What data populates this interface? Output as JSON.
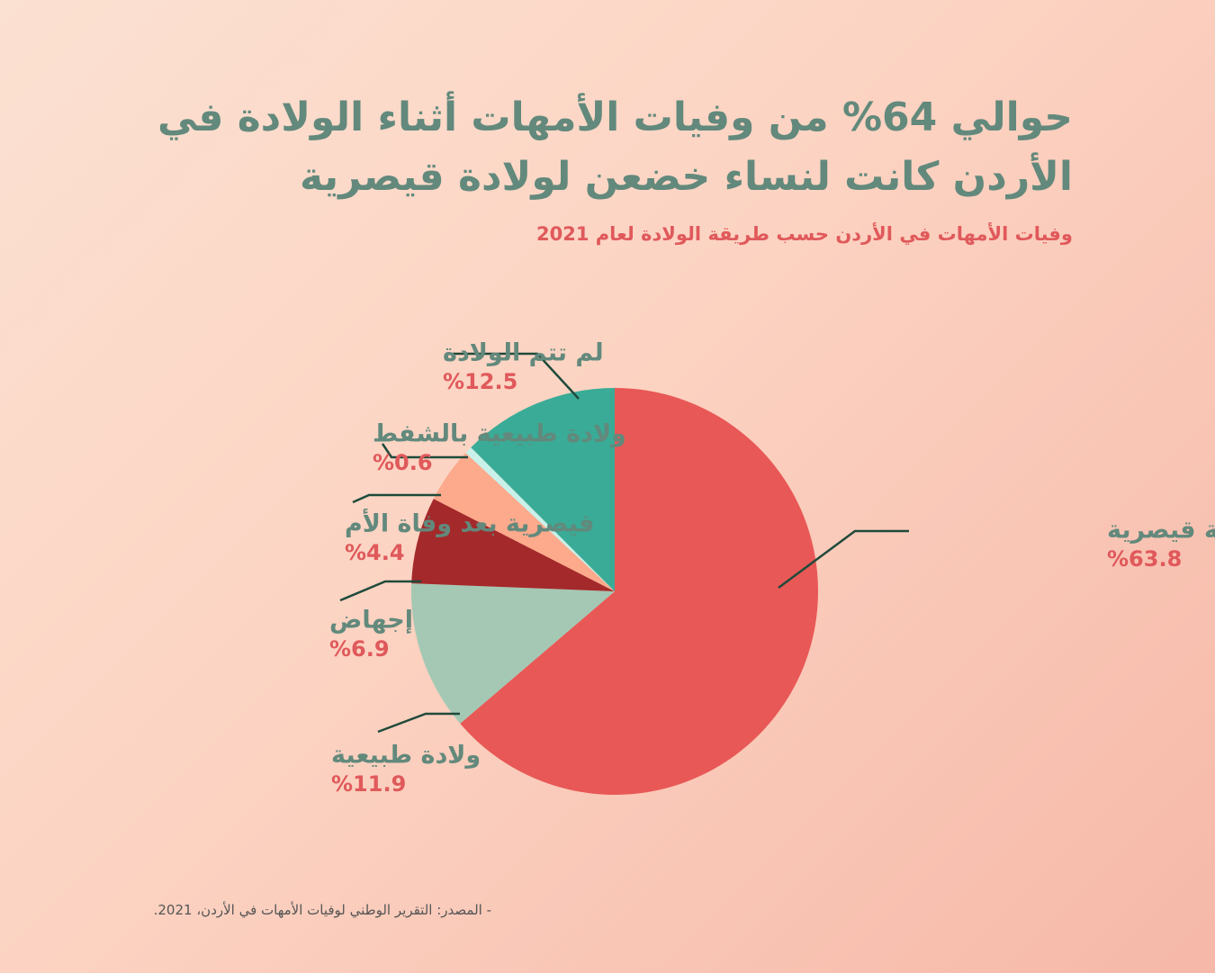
{
  "title": "حوالي 64% من وفيات الأمهات أثناء الولادة في الأردن كانت لنساء خضعن لولادة قيصرية",
  "subtitle": "وفيات الأمهات في الأردن حسب طريقة الولادة لعام 2021",
  "source": "- المصدر: التقرير الوطني لوفيات الأمهات في الأردن، 2021.",
  "chart_data": {
    "type": "pie",
    "start_angle_deg": 0,
    "direction": "clockwise",
    "slices": [
      {
        "name": "عملية قيصرية",
        "value": 63.8,
        "label": "%63.8",
        "color": "#e85856"
      },
      {
        "name": "ولادة طبيعية",
        "value": 11.9,
        "label": "%11.9",
        "color": "#a4c8b4"
      },
      {
        "name": "إجهاض",
        "value": 6.9,
        "label": "%6.9",
        "color": "#a4292b"
      },
      {
        "name": "قيصرية بعد وفاة الأم",
        "value": 4.4,
        "label": "%4.4",
        "color": "#fca98c"
      },
      {
        "name": "ولادة طبيعية بالشفط",
        "value": 0.6,
        "label": "%0.6",
        "color": "#c9f1ea"
      },
      {
        "name": "لم تتم الولادة",
        "value": 12.5,
        "label": "%12.5",
        "color": "#3aab96"
      }
    ]
  }
}
